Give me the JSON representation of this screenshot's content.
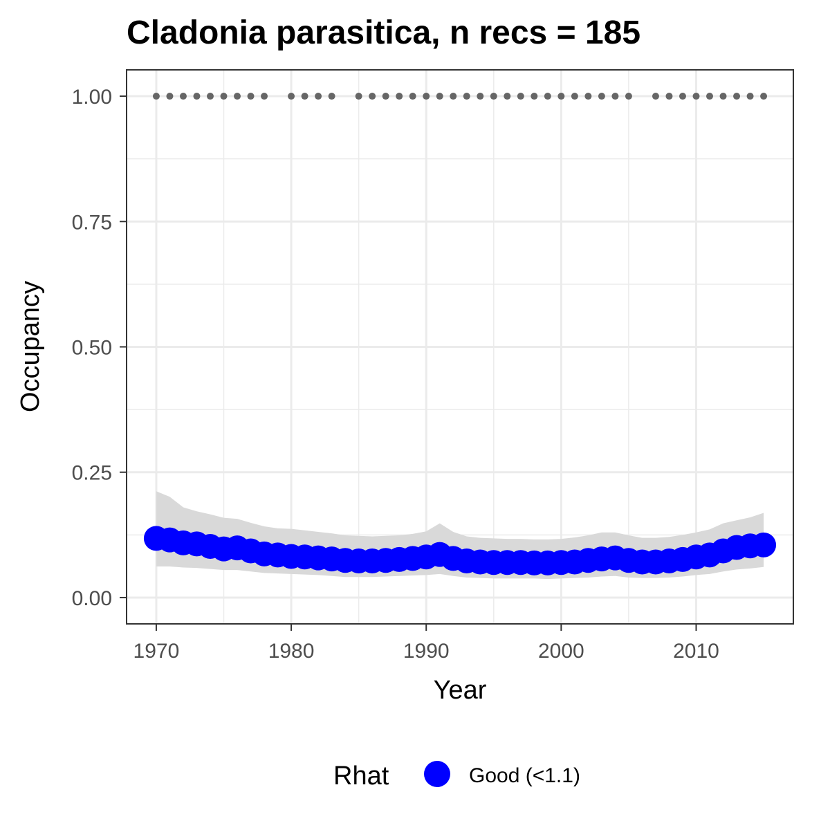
{
  "chart_data": {
    "type": "line",
    "title": "Cladonia parasitica, n recs = 185",
    "xlabel": "Year",
    "ylabel": "Occupancy",
    "xlim": [
      1967.8,
      2017.2
    ],
    "ylim": [
      -0.0525,
      1.0525
    ],
    "x_ticks": [
      1970,
      1980,
      1990,
      2000,
      2010
    ],
    "x_tick_labels": [
      "1970",
      "1980",
      "1990",
      "2000",
      "2010"
    ],
    "y_ticks": [
      0,
      0.25,
      0.5,
      0.75,
      1
    ],
    "y_tick_labels": [
      "0.00",
      "0.25",
      "0.50",
      "0.75",
      "1.00"
    ],
    "grid": true,
    "legend_position": "bottom",
    "legend": {
      "title": "Rhat",
      "entries": [
        {
          "label": "Good (<1.1)",
          "color": "#0000ff"
        }
      ]
    },
    "colors": {
      "estimate": "#0000ff",
      "ribbon": "#d9d9d9",
      "records": "#666666",
      "grid": "#ebebeb",
      "border": "#333333"
    },
    "x": [
      1970,
      1971,
      1972,
      1973,
      1974,
      1975,
      1976,
      1977,
      1978,
      1979,
      1980,
      1981,
      1982,
      1983,
      1984,
      1985,
      1986,
      1987,
      1988,
      1989,
      1990,
      1991,
      1992,
      1993,
      1994,
      1995,
      1996,
      1997,
      1998,
      1999,
      2000,
      2001,
      2002,
      2003,
      2004,
      2005,
      2006,
      2007,
      2008,
      2009,
      2010,
      2011,
      2012,
      2013,
      2014,
      2015
    ],
    "series": [
      {
        "values": [
          0.118,
          0.115,
          0.109,
          0.107,
          0.102,
          0.097,
          0.099,
          0.093,
          0.087,
          0.085,
          0.082,
          0.081,
          0.079,
          0.077,
          0.074,
          0.073,
          0.073,
          0.074,
          0.076,
          0.078,
          0.081,
          0.086,
          0.078,
          0.073,
          0.071,
          0.07,
          0.07,
          0.07,
          0.069,
          0.069,
          0.07,
          0.071,
          0.074,
          0.077,
          0.079,
          0.074,
          0.071,
          0.071,
          0.073,
          0.076,
          0.081,
          0.085,
          0.093,
          0.1,
          0.103,
          0.105
        ],
        "lower": [
          0.062,
          0.062,
          0.06,
          0.059,
          0.057,
          0.055,
          0.055,
          0.052,
          0.049,
          0.048,
          0.047,
          0.046,
          0.045,
          0.043,
          0.041,
          0.041,
          0.041,
          0.042,
          0.043,
          0.044,
          0.045,
          0.047,
          0.043,
          0.04,
          0.039,
          0.038,
          0.038,
          0.038,
          0.038,
          0.037,
          0.038,
          0.039,
          0.04,
          0.042,
          0.043,
          0.04,
          0.039,
          0.039,
          0.04,
          0.042,
          0.045,
          0.047,
          0.052,
          0.056,
          0.058,
          0.061
        ],
        "upper": [
          0.212,
          0.201,
          0.18,
          0.172,
          0.166,
          0.159,
          0.157,
          0.149,
          0.142,
          0.138,
          0.137,
          0.134,
          0.131,
          0.128,
          0.124,
          0.123,
          0.122,
          0.123,
          0.124,
          0.127,
          0.132,
          0.148,
          0.131,
          0.122,
          0.119,
          0.118,
          0.117,
          0.117,
          0.116,
          0.116,
          0.117,
          0.12,
          0.124,
          0.13,
          0.13,
          0.124,
          0.119,
          0.119,
          0.121,
          0.125,
          0.13,
          0.136,
          0.148,
          0.154,
          0.16,
          0.169
        ]
      }
    ],
    "record_years": [
      1970,
      1971,
      1972,
      1973,
      1974,
      1975,
      1976,
      1977,
      1978,
      1980,
      1981,
      1982,
      1983,
      1985,
      1986,
      1987,
      1988,
      1989,
      1990,
      1991,
      1992,
      1993,
      1994,
      1995,
      1996,
      1997,
      1998,
      1999,
      2000,
      2001,
      2002,
      2003,
      2004,
      2005,
      2007,
      2008,
      2009,
      2010,
      2011,
      2012,
      2013,
      2014,
      2015
    ],
    "record_value": 1
  }
}
